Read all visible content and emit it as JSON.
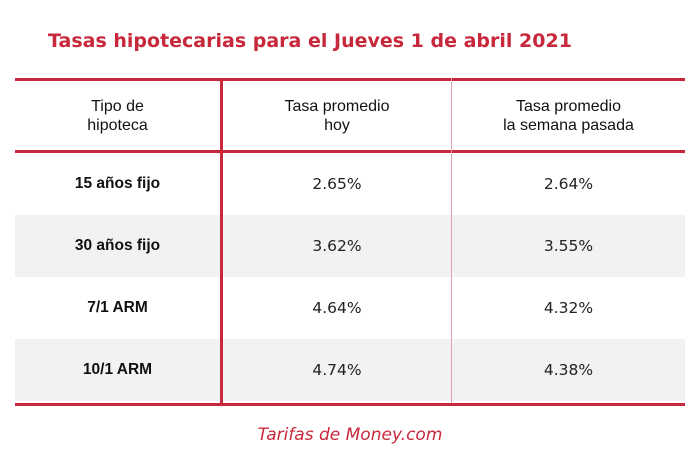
{
  "title": "Tasas hipotecarias para el Jueves 1 de abril 2021",
  "table": {
    "headers": [
      [
        "Tipo de",
        "hipoteca"
      ],
      [
        "Tasa promedio",
        "hoy"
      ],
      [
        "Tasa promedio",
        "la semana pasada"
      ]
    ],
    "rows": [
      {
        "type": "15 años fijo",
        "today": "2.65%",
        "last_week": "2.64%"
      },
      {
        "type": "30 años fijo",
        "today": "3.62%",
        "last_week": "3.55%"
      },
      {
        "type": "7/1 ARM",
        "today": "4.64%",
        "last_week": "4.32%"
      },
      {
        "type": "10/1 ARM",
        "today": "4.74%",
        "last_week": "4.38%"
      }
    ]
  },
  "footer": "Tarifas de Money.com",
  "colors": {
    "accent": "#c8283c",
    "row_shade": "#f2f2f5"
  }
}
